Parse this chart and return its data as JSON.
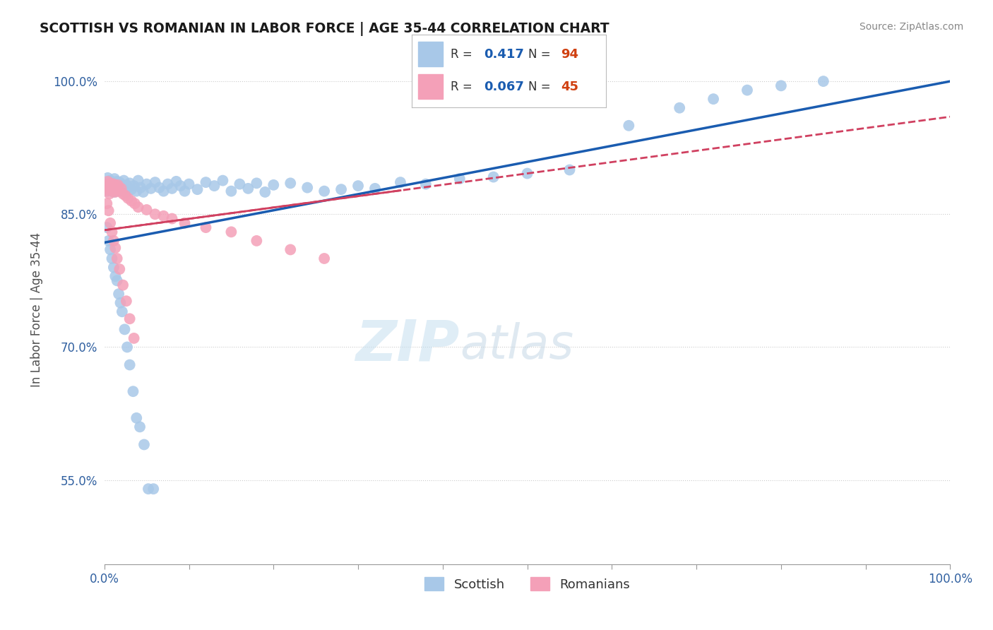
{
  "title": "SCOTTISH VS ROMANIAN IN LABOR FORCE | AGE 35-44 CORRELATION CHART",
  "source": "Source: ZipAtlas.com",
  "ylabel": "In Labor Force | Age 35-44",
  "xlim": [
    0.0,
    1.0
  ],
  "ylim": [
    0.455,
    1.03
  ],
  "yticks": [
    0.55,
    0.7,
    0.85,
    1.0
  ],
  "ytick_labels": [
    "55.0%",
    "70.0%",
    "85.0%",
    "100.0%"
  ],
  "xticks": [
    0.0,
    0.1,
    0.2,
    0.3,
    0.4,
    0.5,
    0.6,
    0.7,
    0.8,
    0.9,
    1.0
  ],
  "xtick_labels": [
    "0.0%",
    "",
    "",
    "",
    "",
    "",
    "",
    "",
    "",
    "",
    "100.0%"
  ],
  "scottish_color": "#a8c8e8",
  "romanian_color": "#f4a0b8",
  "scottish_line_color": "#1a5cb0",
  "romanian_line_color": "#d04060",
  "legend_R_scottish": "0.417",
  "legend_N_scottish": "94",
  "legend_R_romanian": "0.067",
  "legend_N_romanian": "45",
  "background_color": "#ffffff",
  "grid_color": "#cccccc",
  "watermark_zip": "ZIP",
  "watermark_atlas": "atlas",
  "scottish_x": [
    0.002,
    0.003,
    0.004,
    0.005,
    0.006,
    0.007,
    0.008,
    0.008,
    0.009,
    0.01,
    0.01,
    0.011,
    0.012,
    0.012,
    0.013,
    0.014,
    0.015,
    0.015,
    0.016,
    0.017,
    0.018,
    0.019,
    0.02,
    0.021,
    0.022,
    0.023,
    0.025,
    0.026,
    0.028,
    0.03,
    0.032,
    0.035,
    0.038,
    0.04,
    0.043,
    0.046,
    0.05,
    0.055,
    0.06,
    0.065,
    0.07,
    0.075,
    0.08,
    0.085,
    0.09,
    0.095,
    0.1,
    0.11,
    0.12,
    0.13,
    0.14,
    0.15,
    0.16,
    0.17,
    0.18,
    0.19,
    0.2,
    0.22,
    0.24,
    0.26,
    0.28,
    0.3,
    0.32,
    0.35,
    0.38,
    0.42,
    0.46,
    0.5,
    0.55,
    0.62,
    0.68,
    0.72,
    0.76,
    0.8,
    0.85,
    0.003,
    0.005,
    0.007,
    0.009,
    0.011,
    0.013,
    0.015,
    0.017,
    0.019,
    0.021,
    0.024,
    0.027,
    0.03,
    0.034,
    0.038,
    0.042,
    0.047,
    0.052,
    0.058
  ],
  "scottish_y": [
    0.882,
    0.876,
    0.891,
    0.884,
    0.878,
    0.888,
    0.885,
    0.877,
    0.883,
    0.879,
    0.886,
    0.875,
    0.881,
    0.89,
    0.876,
    0.884,
    0.88,
    0.887,
    0.883,
    0.878,
    0.886,
    0.879,
    0.884,
    0.877,
    0.882,
    0.888,
    0.875,
    0.883,
    0.88,
    0.885,
    0.878,
    0.882,
    0.876,
    0.888,
    0.88,
    0.875,
    0.884,
    0.879,
    0.886,
    0.88,
    0.876,
    0.884,
    0.879,
    0.887,
    0.882,
    0.876,
    0.884,
    0.878,
    0.886,
    0.882,
    0.888,
    0.876,
    0.884,
    0.879,
    0.885,
    0.875,
    0.883,
    0.885,
    0.88,
    0.876,
    0.878,
    0.882,
    0.879,
    0.886,
    0.884,
    0.89,
    0.892,
    0.896,
    0.9,
    0.95,
    0.97,
    0.98,
    0.99,
    0.995,
    1.0,
    0.835,
    0.82,
    0.81,
    0.8,
    0.79,
    0.78,
    0.775,
    0.76,
    0.75,
    0.74,
    0.72,
    0.7,
    0.68,
    0.65,
    0.62,
    0.61,
    0.59,
    0.54,
    0.54
  ],
  "romanian_x": [
    0.002,
    0.003,
    0.004,
    0.005,
    0.006,
    0.007,
    0.008,
    0.009,
    0.01,
    0.011,
    0.012,
    0.013,
    0.014,
    0.015,
    0.016,
    0.018,
    0.02,
    0.022,
    0.025,
    0.028,
    0.032,
    0.036,
    0.04,
    0.05,
    0.06,
    0.07,
    0.08,
    0.095,
    0.12,
    0.15,
    0.18,
    0.22,
    0.26,
    0.003,
    0.005,
    0.007,
    0.009,
    0.011,
    0.013,
    0.015,
    0.018,
    0.022,
    0.026,
    0.03,
    0.035
  ],
  "romanian_y": [
    0.883,
    0.877,
    0.887,
    0.88,
    0.873,
    0.885,
    0.878,
    0.882,
    0.876,
    0.884,
    0.879,
    0.875,
    0.882,
    0.877,
    0.883,
    0.876,
    0.879,
    0.873,
    0.871,
    0.868,
    0.865,
    0.862,
    0.858,
    0.855,
    0.85,
    0.848,
    0.845,
    0.84,
    0.835,
    0.83,
    0.82,
    0.81,
    0.8,
    0.862,
    0.854,
    0.84,
    0.83,
    0.82,
    0.812,
    0.8,
    0.788,
    0.77,
    0.752,
    0.732,
    0.71
  ],
  "scottish_trendline_x": [
    0.0,
    1.0
  ],
  "scottish_trendline_y": [
    0.818,
    1.0
  ],
  "romanian_trendline_x": [
    0.0,
    1.0
  ],
  "romanian_trendline_y": [
    0.832,
    0.96
  ]
}
